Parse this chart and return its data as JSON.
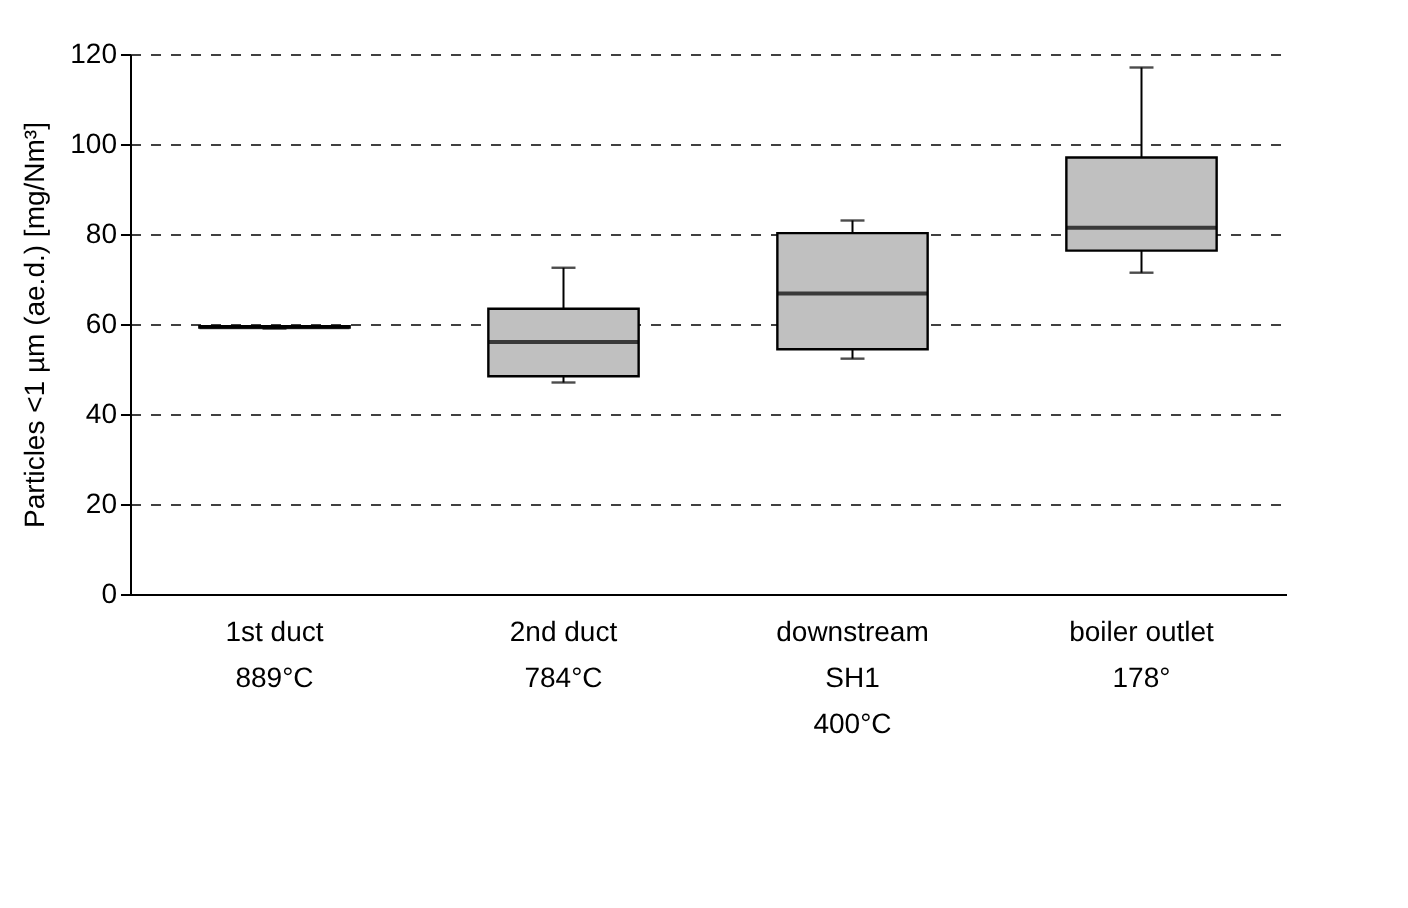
{
  "chart_data": {
    "type": "box",
    "ylabel": "Particles <1 µm (ae.d.) [mg/Nm³]",
    "categories": [
      "1st duct\n\n889°C",
      "2nd duct\n\n784°C",
      "downstream\nSH1\n400°C",
      "boiler outlet\n\n178°"
    ],
    "boxes": [
      {
        "low": 59,
        "q1": 59.2,
        "median": 59.3,
        "q3": 59.5,
        "high": 59.5
      },
      {
        "low": 47,
        "q1": 48.4,
        "median": 56,
        "q3": 63.4,
        "high": 72.5
      },
      {
        "low": 52.3,
        "q1": 54.4,
        "median": 66.8,
        "q3": 80.2,
        "high": 83
      },
      {
        "low": 71.4,
        "q1": 76.3,
        "median": 81.4,
        "q3": 97,
        "high": 117
      }
    ],
    "color": "#c0c0c0",
    "ylim": [
      0,
      120
    ],
    "yticks": [
      0,
      20,
      40,
      60,
      80,
      100,
      120
    ],
    "grid": "y"
  }
}
